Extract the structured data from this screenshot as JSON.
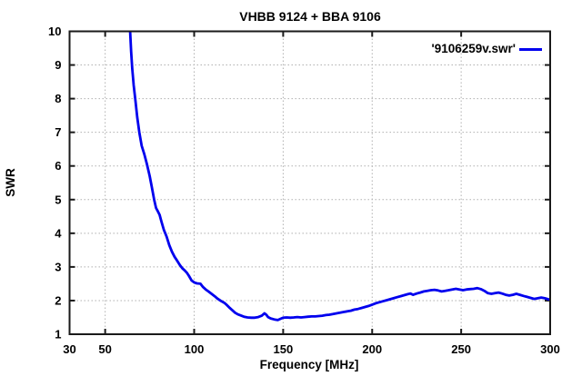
{
  "chart_data": {
    "type": "line",
    "title": "VHBB 9124 + BBA 9106",
    "xlabel": "Frequency [MHz]",
    "ylabel": "SWR",
    "xlim": [
      30,
      300
    ],
    "ylim": [
      1,
      10
    ],
    "x_ticks": [
      30,
      50,
      100,
      150,
      200,
      250,
      300
    ],
    "y_ticks": [
      1,
      2,
      3,
      4,
      5,
      6,
      7,
      8,
      9,
      10
    ],
    "grid": true,
    "grid_style": "dotted",
    "legend_position": "top-right-inside",
    "line_color": "#0000ee",
    "grid_color": "#b0b0b0",
    "border_color": "#1a1a1a",
    "text_color": "#000000",
    "background_color": "#ffffff",
    "series": [
      {
        "name": "'9106259v.swr'",
        "points": [
          [
            63.5,
            10.6
          ],
          [
            64,
            10.0
          ],
          [
            64.6,
            9.4
          ],
          [
            65.2,
            8.9
          ],
          [
            66,
            8.4
          ],
          [
            67,
            7.95
          ],
          [
            68,
            7.45
          ],
          [
            69.2,
            7.0
          ],
          [
            70.5,
            6.6
          ],
          [
            72,
            6.35
          ],
          [
            73.5,
            6.05
          ],
          [
            75,
            5.7
          ],
          [
            76.3,
            5.35
          ],
          [
            77.5,
            5.0
          ],
          [
            78.6,
            4.75
          ],
          [
            79.6,
            4.65
          ],
          [
            80.6,
            4.55
          ],
          [
            81.6,
            4.35
          ],
          [
            83,
            4.1
          ],
          [
            84.5,
            3.9
          ],
          [
            86,
            3.65
          ],
          [
            87.5,
            3.45
          ],
          [
            89,
            3.3
          ],
          [
            90.5,
            3.18
          ],
          [
            92,
            3.05
          ],
          [
            93.5,
            2.95
          ],
          [
            94.6,
            2.9
          ],
          [
            96,
            2.82
          ],
          [
            97,
            2.74
          ],
          [
            98.5,
            2.6
          ],
          [
            100,
            2.54
          ],
          [
            101.5,
            2.51
          ],
          [
            103.5,
            2.5
          ],
          [
            105,
            2.4
          ],
          [
            106.5,
            2.33
          ],
          [
            108,
            2.27
          ],
          [
            110,
            2.19
          ],
          [
            111.5,
            2.13
          ],
          [
            113,
            2.06
          ],
          [
            115,
            1.99
          ],
          [
            117,
            1.93
          ],
          [
            118.5,
            1.86
          ],
          [
            120,
            1.78
          ],
          [
            121.5,
            1.71
          ],
          [
            123,
            1.64
          ],
          [
            124.5,
            1.59
          ],
          [
            126,
            1.56
          ],
          [
            128,
            1.52
          ],
          [
            130,
            1.5
          ],
          [
            132,
            1.49
          ],
          [
            134,
            1.49
          ],
          [
            136,
            1.51
          ],
          [
            138,
            1.55
          ],
          [
            139.5,
            1.62
          ],
          [
            140.5,
            1.58
          ],
          [
            141.5,
            1.51
          ],
          [
            143,
            1.47
          ],
          [
            145,
            1.44
          ],
          [
            147,
            1.42
          ],
          [
            148.5,
            1.46
          ],
          [
            150,
            1.49
          ],
          [
            152,
            1.5
          ],
          [
            154,
            1.49
          ],
          [
            156,
            1.5
          ],
          [
            158,
            1.51
          ],
          [
            160,
            1.5
          ],
          [
            162,
            1.51
          ],
          [
            164,
            1.52
          ],
          [
            166,
            1.53
          ],
          [
            168,
            1.53
          ],
          [
            170,
            1.54
          ],
          [
            172,
            1.55
          ],
          [
            174,
            1.57
          ],
          [
            176,
            1.58
          ],
          [
            178,
            1.6
          ],
          [
            180,
            1.62
          ],
          [
            182,
            1.64
          ],
          [
            184,
            1.66
          ],
          [
            186,
            1.68
          ],
          [
            188,
            1.7
          ],
          [
            190,
            1.73
          ],
          [
            192,
            1.75
          ],
          [
            194,
            1.78
          ],
          [
            196,
            1.81
          ],
          [
            198,
            1.84
          ],
          [
            200,
            1.88
          ],
          [
            202,
            1.92
          ],
          [
            204,
            1.95
          ],
          [
            206,
            1.98
          ],
          [
            208,
            2.01
          ],
          [
            210,
            2.04
          ],
          [
            212,
            2.07
          ],
          [
            214,
            2.1
          ],
          [
            216,
            2.13
          ],
          [
            218,
            2.16
          ],
          [
            220,
            2.19
          ],
          [
            221.5,
            2.21
          ],
          [
            223,
            2.17
          ],
          [
            225,
            2.21
          ],
          [
            227,
            2.24
          ],
          [
            229,
            2.27
          ],
          [
            231,
            2.29
          ],
          [
            233,
            2.31
          ],
          [
            235,
            2.32
          ],
          [
            237,
            2.3
          ],
          [
            239,
            2.27
          ],
          [
            241,
            2.29
          ],
          [
            243,
            2.31
          ],
          [
            245,
            2.33
          ],
          [
            247,
            2.35
          ],
          [
            249,
            2.33
          ],
          [
            251,
            2.31
          ],
          [
            253,
            2.33
          ],
          [
            255,
            2.34
          ],
          [
            257,
            2.35
          ],
          [
            259,
            2.37
          ],
          [
            261,
            2.34
          ],
          [
            263,
            2.29
          ],
          [
            265,
            2.22
          ],
          [
            267,
            2.2
          ],
          [
            269,
            2.22
          ],
          [
            271,
            2.24
          ],
          [
            273,
            2.21
          ],
          [
            275,
            2.17
          ],
          [
            277,
            2.15
          ],
          [
            279,
            2.17
          ],
          [
            281,
            2.2
          ],
          [
            283,
            2.17
          ],
          [
            285,
            2.14
          ],
          [
            287,
            2.11
          ],
          [
            289,
            2.08
          ],
          [
            291,
            2.05
          ],
          [
            293,
            2.07
          ],
          [
            295,
            2.09
          ],
          [
            297,
            2.07
          ],
          [
            299,
            2.04
          ],
          [
            300,
            2.03
          ]
        ]
      }
    ]
  }
}
